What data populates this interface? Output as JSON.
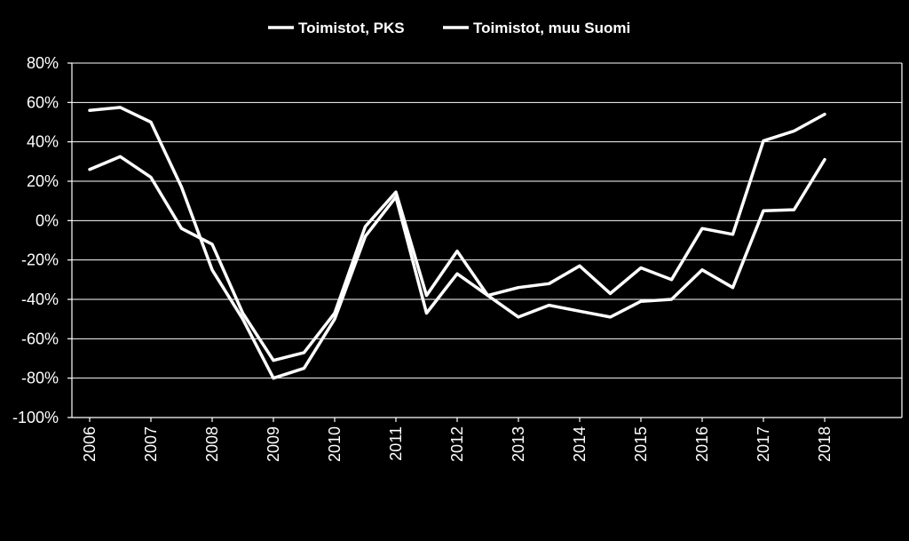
{
  "chart_data": {
    "type": "line",
    "title": "",
    "xlabel": "",
    "ylabel": "",
    "ylim": [
      -100,
      80
    ],
    "yticks": [
      "80%",
      "60%",
      "40%",
      "20%",
      "0%",
      "-20%",
      "-40%",
      "-60%",
      "-80%",
      "-100%"
    ],
    "ytick_values": [
      80,
      60,
      40,
      20,
      0,
      -20,
      -40,
      -60,
      -80,
      -100
    ],
    "x_tick_labels": [
      "2006",
      "2007",
      "2008",
      "2009",
      "2010",
      "2011",
      "2012",
      "2013",
      "2014",
      "2015",
      "2016",
      "2017",
      "2018"
    ],
    "x": [
      2006,
      2006.5,
      2007,
      2007.5,
      2008,
      2008.5,
      2009,
      2009.5,
      2010,
      2010.5,
      2011,
      2011.5,
      2012,
      2012.5,
      2013,
      2013.5,
      2014,
      2014.5,
      2015,
      2015.5,
      2016,
      2016.5,
      2017,
      2017.5,
      2018
    ],
    "grid": true,
    "legend_position": "top",
    "line_color": "#ffffff",
    "background": "#000000",
    "series": [
      {
        "name": "Toimistot, PKS",
        "values": [
          56,
          57.5,
          50,
          17,
          -25,
          -50,
          -80,
          -75,
          -50,
          -8,
          12,
          -47,
          -27,
          -38,
          -49,
          -43,
          -46,
          -49,
          -41,
          -40,
          -25,
          -34,
          5,
          5.5,
          31
        ]
      },
      {
        "name": "Toimistot, muu Suomi",
        "values": [
          26,
          32.5,
          22,
          -4,
          -12,
          -47,
          -71,
          -67,
          -47,
          -3,
          14.5,
          -38,
          -15.5,
          -38,
          -34,
          -32,
          -23,
          -37,
          -24,
          -30,
          -4,
          -7,
          40.5,
          45.5,
          54
        ]
      }
    ]
  }
}
